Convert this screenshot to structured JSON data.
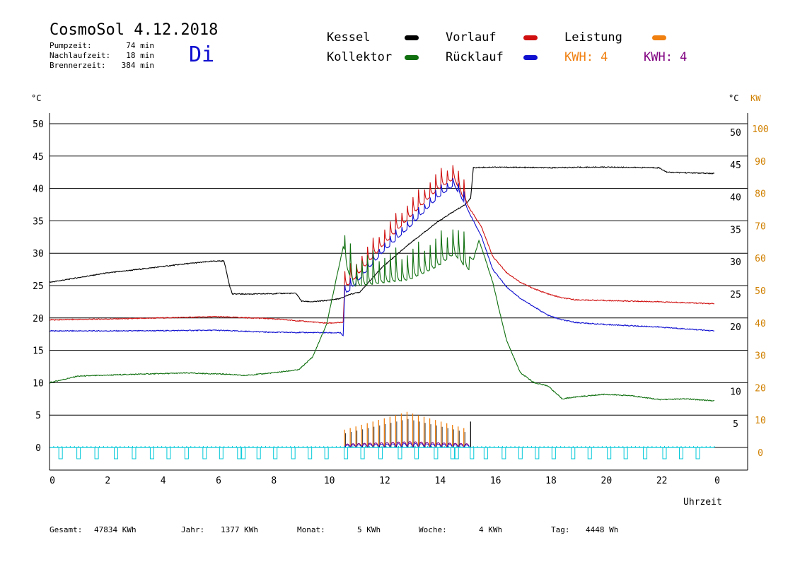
{
  "header": {
    "title": "CosmoSol 4.12.2018",
    "day": "Di",
    "stats": [
      {
        "label": "Pumpzeit:",
        "value": "74 min"
      },
      {
        "label": "Nachlaufzeit:",
        "value": "18 min"
      },
      {
        "label": "Brennerzeit:",
        "value": "384 min"
      }
    ]
  },
  "legend": {
    "kessel": "Kessel",
    "vorlauf": "Vorlauf",
    "leistung": "Leistung",
    "kollektor": "Kollektor",
    "ruecklauf": "Rücklauf",
    "kwh1": "KWH: 4",
    "kwh2": "KWH: 4"
  },
  "footer": {
    "gesamt_label": "Gesamt:",
    "gesamt_value": "47834 KWh",
    "jahr_label": "Jahr:",
    "jahr_value": "1377 KWh",
    "monat_label": "Monat:",
    "monat_value": "5 KWh",
    "woche_label": "Woche:",
    "woche_value": "4 KWh",
    "tag_label": "Tag:",
    "tag_value": "4448 Wh"
  },
  "chart_data": {
    "type": "line",
    "xlabel": "Uhrzeit",
    "ylabel_left": "°C",
    "ylabel_right_temp": "°C",
    "ylabel_right_power": "KW",
    "x_ticks": [
      "0",
      "2",
      "4",
      "6",
      "8",
      "10",
      "12",
      "14",
      "16",
      "18",
      "20",
      "22",
      "0"
    ],
    "y_ticks_left": [
      "0",
      "5",
      "10",
      "15",
      "20",
      "25",
      "30",
      "35",
      "40",
      "45",
      "50"
    ],
    "y_ticks_right_temp": [
      "5",
      "10",
      "20",
      "25",
      "30",
      "35",
      "40",
      "45",
      "50"
    ],
    "y_ticks_right_power": [
      "0",
      "10",
      "20",
      "30",
      "40",
      "50",
      "60",
      "70",
      "80",
      "90",
      "100"
    ],
    "xlim": [
      0,
      24
    ],
    "ylim": [
      0,
      50
    ],
    "power_ylim": [
      0,
      100
    ],
    "grid": true,
    "colors": {
      "kessel": "#000000",
      "vorlauf": "#d01010",
      "ruecklauf": "#1010d0",
      "kollektor": "#107010",
      "leistung": "#f08010",
      "kwh2": "#800080",
      "pump": "#00c8d8",
      "power_axis": "#d08000"
    },
    "series": [
      {
        "name": "Kessel",
        "key": "kessel",
        "x": [
          0,
          2,
          4,
          5,
          6,
          6.3,
          6.5,
          6.6,
          7.5,
          8.5,
          8.9,
          9.1,
          9.5,
          10,
          10.5,
          10.8,
          11.2,
          12,
          13,
          14,
          14.5,
          15,
          15.2,
          15.3,
          16,
          18,
          20,
          21.9,
          22,
          22.3,
          24
        ],
        "y": [
          25.5,
          26.9,
          27.9,
          28.4,
          28.8,
          28.8,
          25,
          23.7,
          23.7,
          23.8,
          23.8,
          22.6,
          22.5,
          22.7,
          23,
          23.6,
          24,
          27.8,
          31.5,
          34.8,
          36.2,
          37.5,
          38.5,
          43.2,
          43.3,
          43.2,
          43.3,
          43.2,
          43.2,
          42.5,
          42.3
        ]
      },
      {
        "name": "Vorlauf",
        "key": "vorlauf",
        "x": [
          0,
          3,
          6,
          8,
          10,
          10.6,
          10.65,
          11,
          12,
          13,
          14,
          14.6,
          15,
          15.3,
          15.6,
          16,
          16.5,
          17,
          17.5,
          18,
          18.5,
          19,
          20,
          22,
          24
        ],
        "y": [
          19.7,
          19.9,
          20.2,
          19.9,
          19.2,
          19.3,
          24.5,
          26,
          31,
          35.5,
          39.8,
          41.5,
          38,
          36,
          34,
          29.5,
          27,
          25.5,
          24.5,
          23.7,
          23.1,
          22.8,
          22.7,
          22.5,
          22.2
        ]
      },
      {
        "name": "Rücklauf",
        "key": "ruecklauf",
        "x": [
          0,
          3,
          6,
          8,
          10.5,
          10.6,
          10.65,
          11,
          12,
          13,
          14,
          14.6,
          15,
          15.3,
          15.6,
          16,
          16.5,
          17,
          17.5,
          18,
          18.5,
          19,
          20,
          22,
          24
        ],
        "y": [
          18,
          18,
          18.1,
          17.8,
          17.7,
          17.2,
          23.5,
          25,
          30,
          34,
          38.5,
          40.5,
          37.5,
          35,
          32.5,
          27.5,
          24.8,
          23,
          21.7,
          20.4,
          19.7,
          19.3,
          19,
          18.6,
          18
        ]
      },
      {
        "name": "Kollektor",
        "key": "kollektor",
        "x": [
          0,
          0.5,
          1,
          3,
          5,
          6.5,
          7,
          8,
          9,
          9.5,
          10,
          10.3,
          10.5,
          10.6,
          11,
          12,
          13,
          14,
          14.6,
          15,
          15.3,
          15.5,
          15.7,
          16,
          16.3,
          16.5,
          17,
          17.5,
          18,
          18.5,
          19,
          20,
          21,
          22,
          23,
          24
        ],
        "y": [
          10,
          10.5,
          11,
          11.3,
          11.5,
          11.3,
          11.1,
          11.5,
          12,
          14,
          19,
          25,
          29,
          31,
          27,
          27.5,
          28,
          30,
          32,
          30,
          29,
          32,
          29.5,
          25.5,
          20,
          16.5,
          11.5,
          10,
          9.5,
          7.5,
          7.8,
          8.2,
          8,
          7.4,
          7.5,
          7.2
        ]
      }
    ],
    "oscillations": {
      "start": 10.65,
      "end": 15.15,
      "period": 0.205,
      "kollektor_amplitude": 6,
      "vorlauf_peak_offset": 3.5,
      "ruecklauf_peak_offset": 2.0
    },
    "leistung_spikes": {
      "start": 10.65,
      "end": 15.15,
      "period": 0.205,
      "kw_min": 5.5,
      "kw_max": 11,
      "kw_end": 8,
      "hump_kw": 1.8
    },
    "pump_pulses": [
      0.4,
      1.05,
      1.7,
      2.4,
      3.05,
      3.7,
      4.3,
      4.95,
      5.6,
      6.2,
      6.85,
      7.0,
      7.55,
      8.15,
      8.8,
      9.4,
      10.0,
      10.7,
      11.3,
      11.95,
      12.65,
      13.25,
      13.95,
      14.55,
      14.7,
      15.25,
      15.75,
      16.4,
      17.0,
      17.6,
      18.2,
      18.9,
      19.5,
      20.2,
      20.8,
      21.5,
      22.2,
      22.8,
      23.4
    ]
  }
}
